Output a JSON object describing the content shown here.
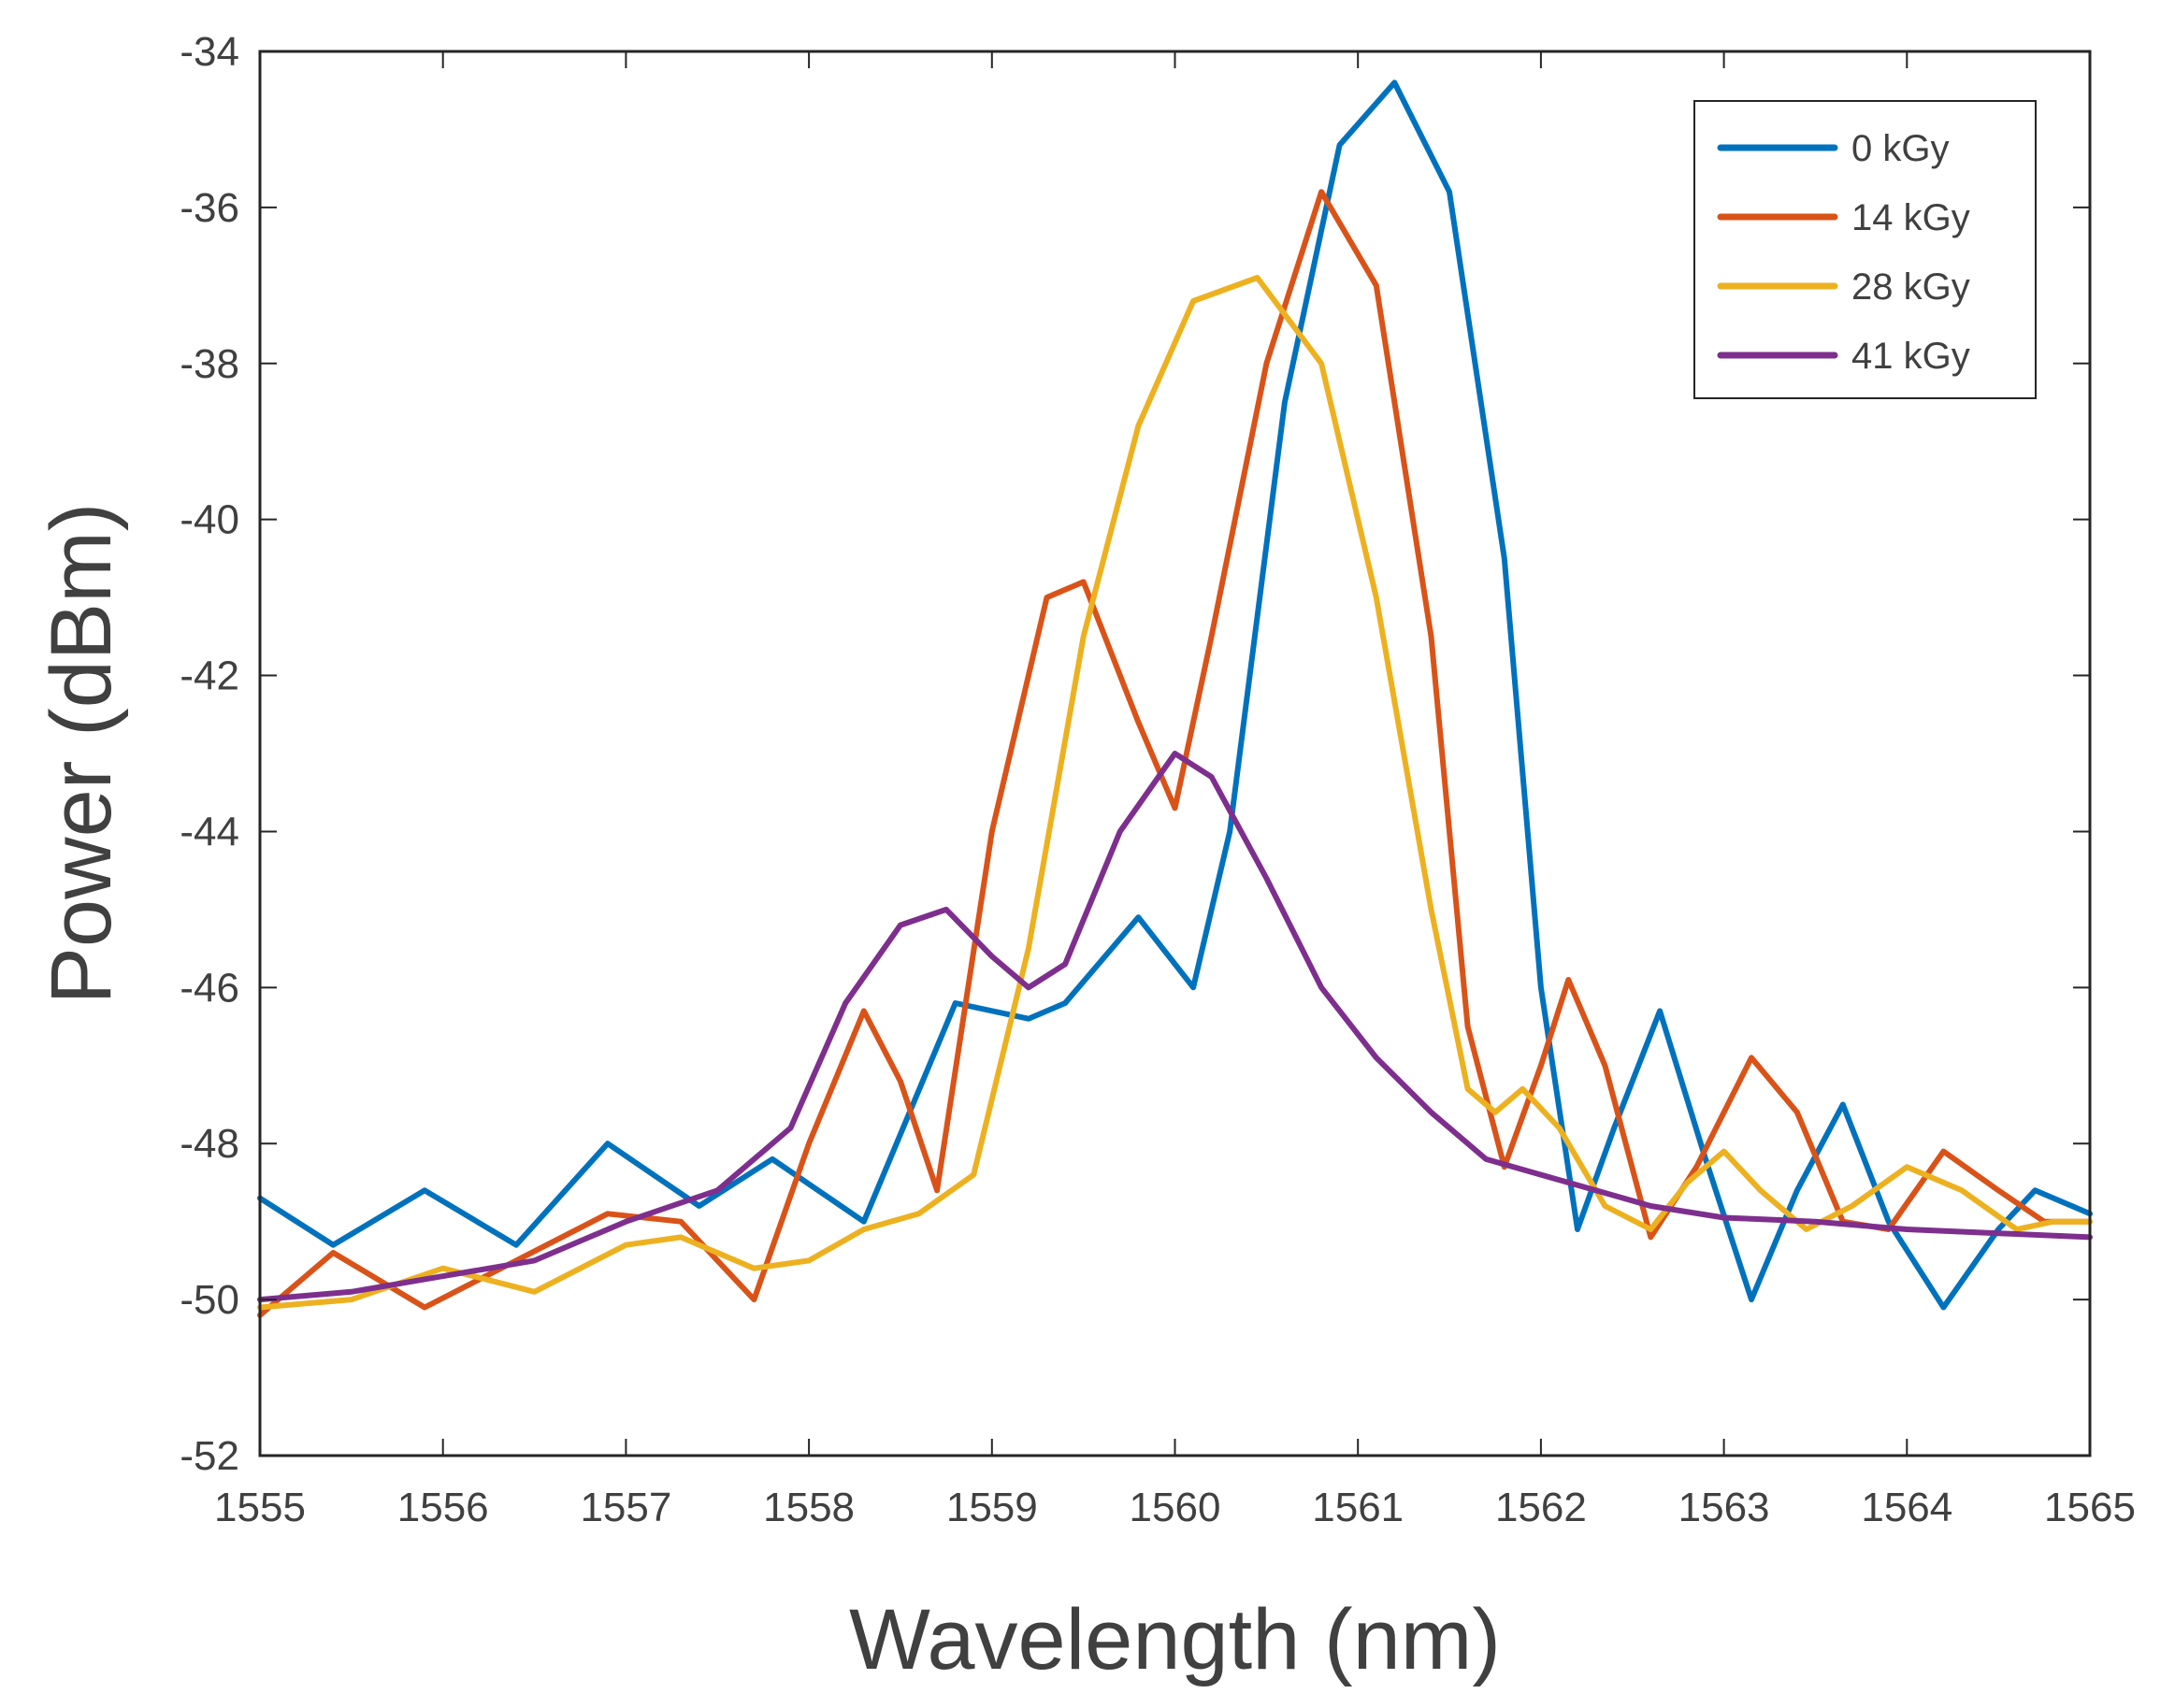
{
  "chart_data": {
    "type": "line",
    "title": "",
    "xlabel": "Wavelength (nm)",
    "ylabel": "Power (dBm)",
    "xlim": [
      1555,
      1565
    ],
    "ylim": [
      -52,
      -34
    ],
    "xticks": [
      "1555",
      "1556",
      "1557",
      "1558",
      "1559",
      "1560",
      "1561",
      "1562",
      "1563",
      "1564",
      "1565"
    ],
    "yticks": [
      "-52",
      "-50",
      "-48",
      "-46",
      "-44",
      "-42",
      "-40",
      "-38",
      "-36",
      "-34"
    ],
    "grid": false,
    "legend_position": "top-right",
    "series": [
      {
        "name": "0 kGy",
        "color": "#0072BD",
        "x": [
          1555.0,
          1555.4,
          1555.9,
          1556.4,
          1556.9,
          1557.4,
          1557.8,
          1558.3,
          1558.8,
          1559.2,
          1559.4,
          1559.8,
          1560.1,
          1560.3,
          1560.6,
          1560.9,
          1561.2,
          1561.5,
          1561.8,
          1562.0,
          1562.2,
          1562.4,
          1562.65,
          1562.9,
          1563.15,
          1563.4,
          1563.65,
          1563.9,
          1564.2,
          1564.5,
          1564.7,
          1565.0
        ],
        "y": [
          -48.7,
          -49.3,
          -48.6,
          -49.3,
          -48.0,
          -48.8,
          -48.2,
          -49.0,
          -46.2,
          -46.4,
          -46.2,
          -45.1,
          -46.0,
          -44.0,
          -38.5,
          -35.2,
          -34.4,
          -35.8,
          -40.5,
          -46.0,
          -49.1,
          -47.8,
          -46.3,
          -48.2,
          -50.0,
          -48.6,
          -47.5,
          -49.0,
          -50.1,
          -49.1,
          -48.6,
          -48.9
        ]
      },
      {
        "name": "14 kGy",
        "color": "#D95319",
        "x": [
          1555.0,
          1555.4,
          1555.9,
          1556.4,
          1556.9,
          1557.3,
          1557.7,
          1558.0,
          1558.3,
          1558.5,
          1558.7,
          1559.0,
          1559.3,
          1559.5,
          1559.8,
          1560.0,
          1560.2,
          1560.5,
          1560.8,
          1561.1,
          1561.4,
          1561.6,
          1561.8,
          1562.0,
          1562.15,
          1562.35,
          1562.6,
          1562.85,
          1563.15,
          1563.4,
          1563.65,
          1563.9,
          1564.2,
          1564.5,
          1564.75,
          1565.0
        ],
        "y": [
          -50.2,
          -49.4,
          -50.1,
          -49.5,
          -48.9,
          -49.0,
          -50.0,
          -48.0,
          -46.3,
          -47.2,
          -48.6,
          -44.0,
          -41.0,
          -40.8,
          -42.6,
          -43.7,
          -41.5,
          -38.0,
          -35.8,
          -37.0,
          -41.5,
          -46.5,
          -48.3,
          -47.0,
          -45.9,
          -47.0,
          -49.2,
          -48.3,
          -46.9,
          -47.6,
          -49.0,
          -49.1,
          -48.1,
          -48.6,
          -49.0,
          -49.0
        ]
      },
      {
        "name": "28 kGy",
        "color": "#EDB120",
        "x": [
          1555.0,
          1555.5,
          1556.0,
          1556.5,
          1557.0,
          1557.3,
          1557.7,
          1558.0,
          1558.3,
          1558.6,
          1558.9,
          1559.2,
          1559.5,
          1559.8,
          1560.1,
          1560.45,
          1560.8,
          1561.1,
          1561.4,
          1561.6,
          1561.75,
          1561.9,
          1562.1,
          1562.35,
          1562.6,
          1562.8,
          1563.0,
          1563.2,
          1563.45,
          1563.7,
          1564.0,
          1564.3,
          1564.6,
          1564.8,
          1565.0
        ],
        "y": [
          -50.1,
          -50.0,
          -49.6,
          -49.9,
          -49.3,
          -49.2,
          -49.6,
          -49.5,
          -49.1,
          -48.9,
          -48.4,
          -45.5,
          -41.5,
          -38.8,
          -37.2,
          -36.9,
          -38.0,
          -41.0,
          -45.0,
          -47.3,
          -47.6,
          -47.3,
          -47.8,
          -48.8,
          -49.1,
          -48.5,
          -48.1,
          -48.6,
          -49.1,
          -48.8,
          -48.3,
          -48.6,
          -49.1,
          -49.0,
          -49.0
        ]
      },
      {
        "name": "41 kGy",
        "color": "#7E2F8E",
        "x": [
          1555.0,
          1555.5,
          1556.0,
          1556.5,
          1557.0,
          1557.5,
          1557.9,
          1558.2,
          1558.5,
          1558.75,
          1559.0,
          1559.2,
          1559.4,
          1559.7,
          1560.0,
          1560.2,
          1560.5,
          1560.8,
          1561.1,
          1561.4,
          1561.7,
          1562.0,
          1562.3,
          1562.6,
          1563.0,
          1563.5,
          1564.0,
          1564.5,
          1565.0
        ],
        "y": [
          -50.0,
          -49.9,
          -49.7,
          -49.5,
          -49.0,
          -48.6,
          -47.8,
          -46.2,
          -45.2,
          -45.0,
          -45.6,
          -46.0,
          -45.7,
          -44.0,
          -43.0,
          -43.3,
          -44.6,
          -46.0,
          -46.9,
          -47.6,
          -48.2,
          -48.4,
          -48.6,
          -48.8,
          -48.95,
          -49.0,
          -49.1,
          -49.15,
          -49.2
        ]
      }
    ]
  }
}
